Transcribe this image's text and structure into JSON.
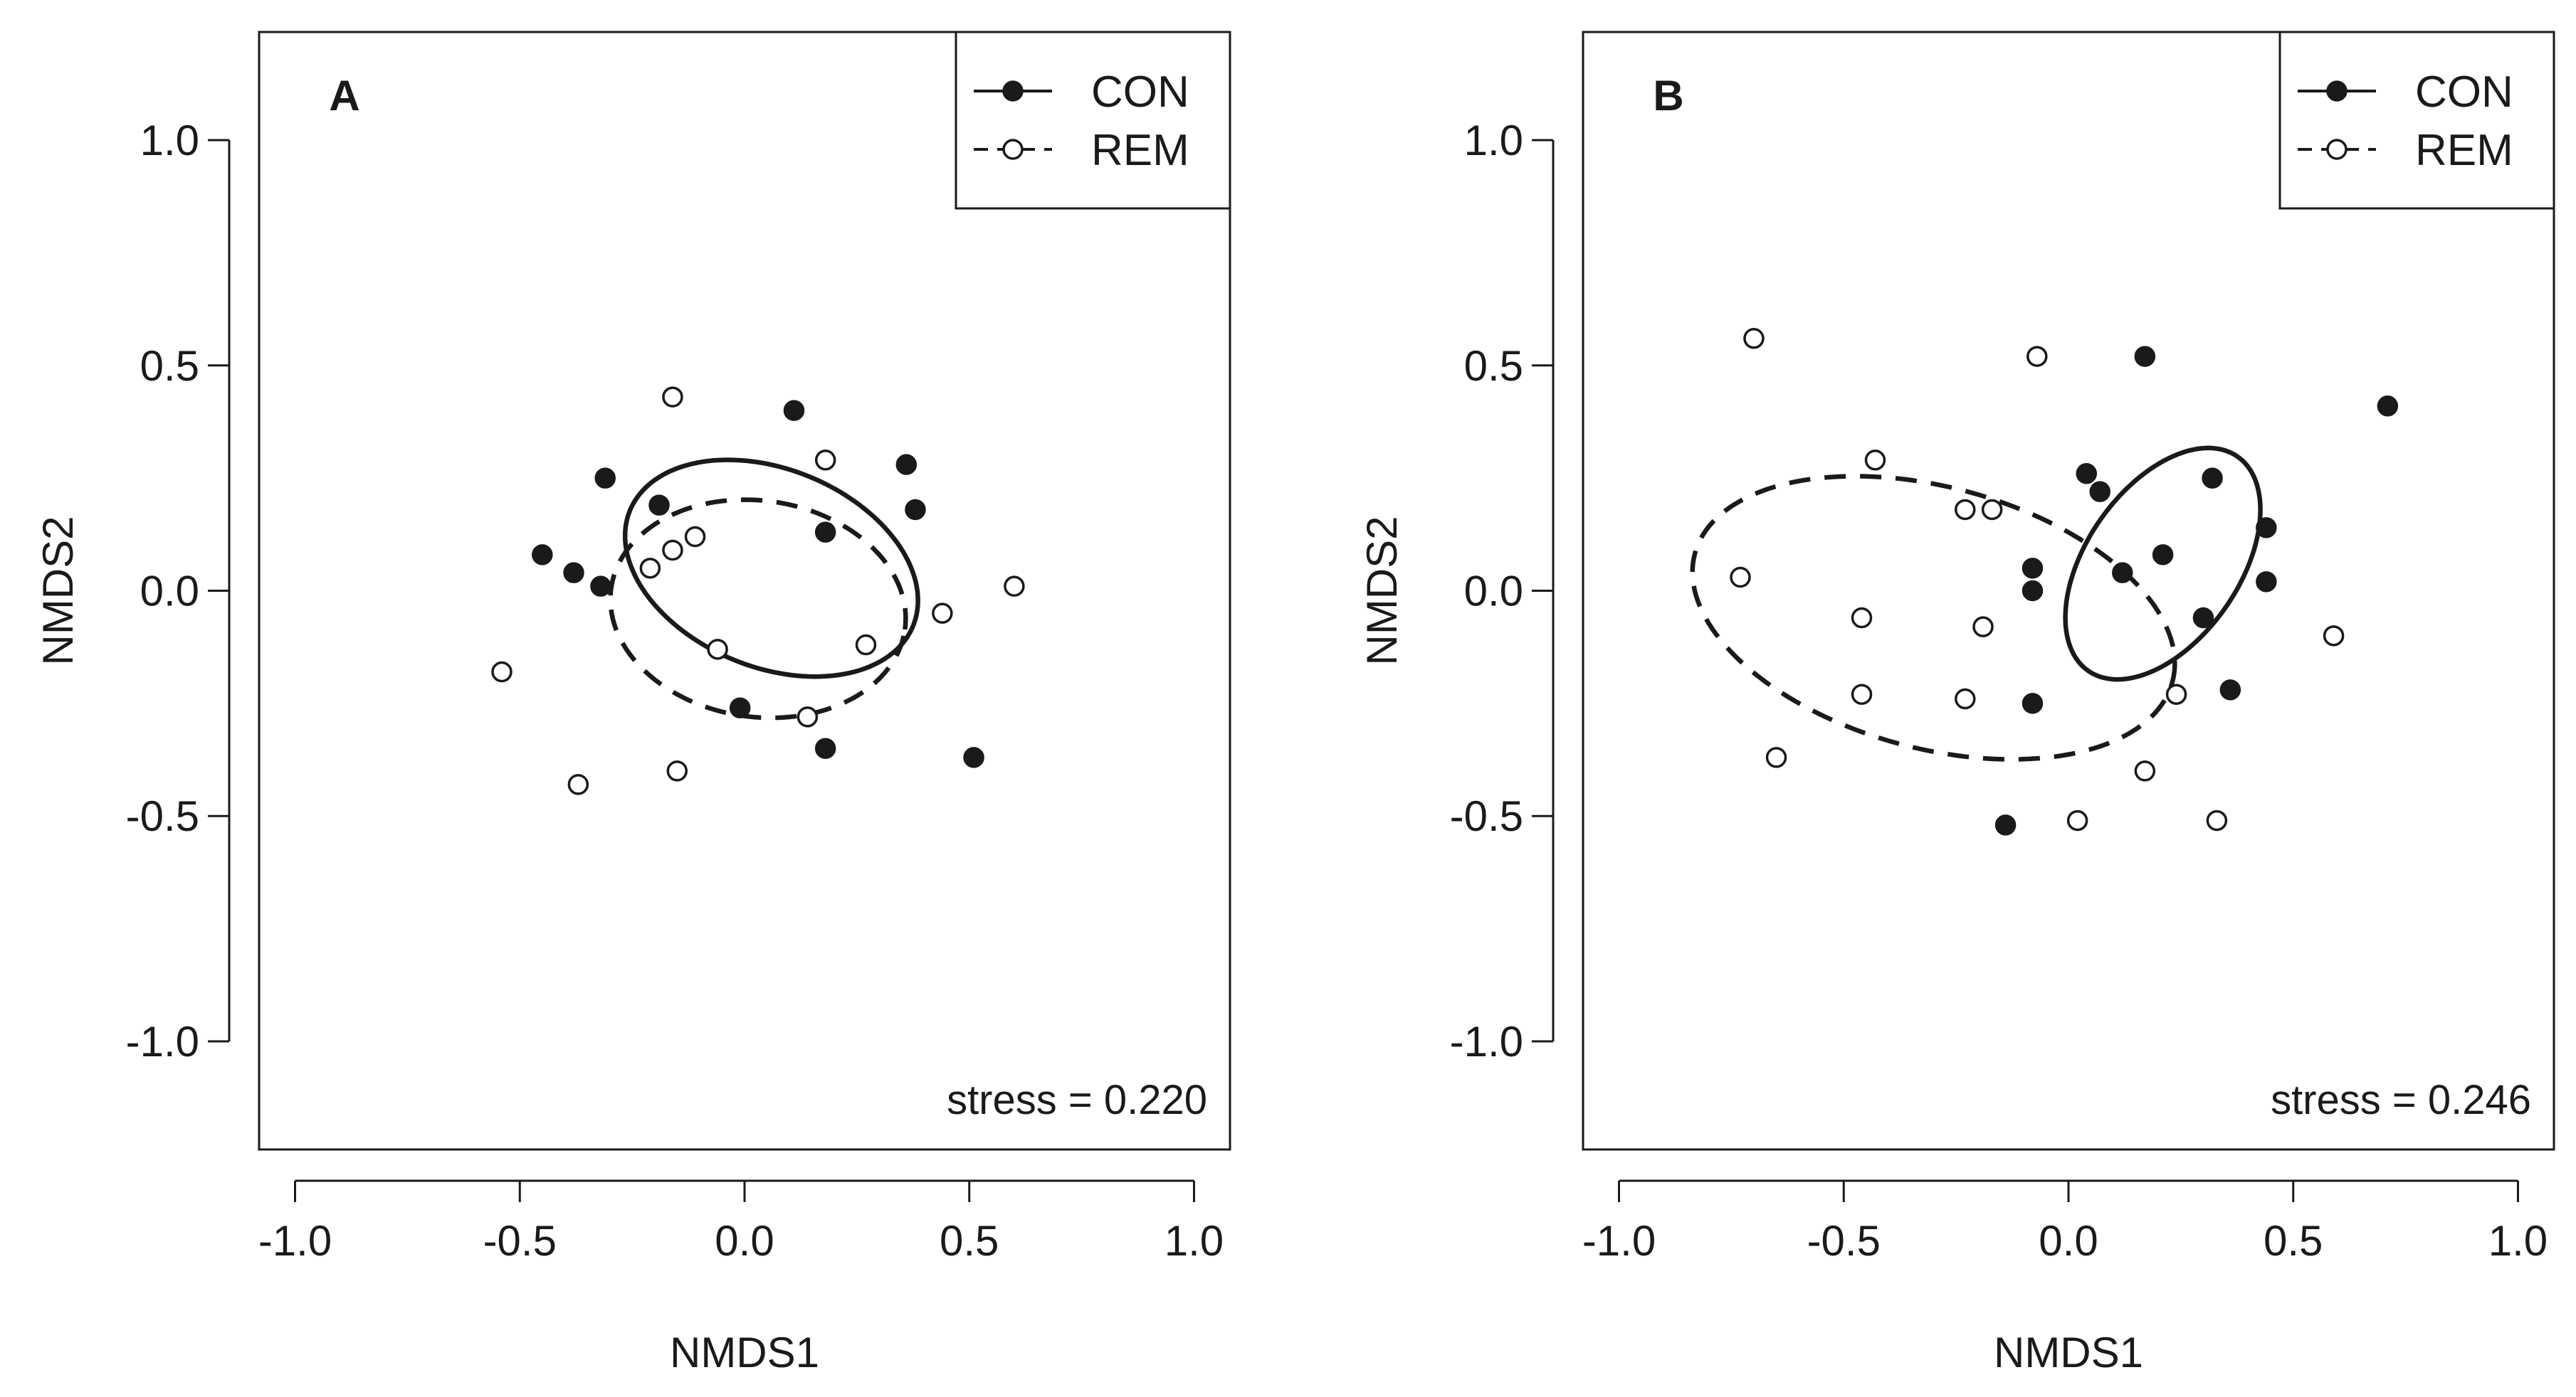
{
  "chart_data": [
    {
      "type": "scatter",
      "panel_label": "A",
      "xlabel": "NMDS1",
      "ylabel": "NMDS2",
      "xlim": [
        -1.08,
        1.08
      ],
      "ylim": [
        -1.24,
        1.24
      ],
      "xticks": [
        -1.0,
        -0.5,
        0.0,
        0.5,
        1.0
      ],
      "yticks": [
        -1.0,
        -0.5,
        0.0,
        0.5,
        1.0
      ],
      "tick_labels": [
        "-1.0",
        "-0.5",
        "0.0",
        "0.5",
        "1.0"
      ],
      "legend_position": "top-right",
      "stress_label": "stress = 0.220",
      "series": [
        {
          "name": "CON",
          "marker": "filled-circle",
          "line": "solid",
          "points": [
            [
              -0.45,
              0.08
            ],
            [
              -0.38,
              0.04
            ],
            [
              -0.32,
              0.01
            ],
            [
              -0.31,
              0.25
            ],
            [
              -0.19,
              0.19
            ],
            [
              0.11,
              0.4
            ],
            [
              0.18,
              0.13
            ],
            [
              0.36,
              0.28
            ],
            [
              0.38,
              0.18
            ],
            [
              -0.01,
              -0.26
            ],
            [
              0.18,
              -0.35
            ],
            [
              0.51,
              -0.37
            ]
          ],
          "ellipse": {
            "cx": 0.06,
            "cy": 0.05,
            "rx": 0.34,
            "ry": 0.22,
            "angle_deg": -22
          }
        },
        {
          "name": "REM",
          "marker": "open-circle",
          "line": "dashed",
          "points": [
            [
              -0.54,
              -0.18
            ],
            [
              -0.16,
              0.43
            ],
            [
              0.18,
              0.29
            ],
            [
              -0.21,
              0.05
            ],
            [
              -0.16,
              0.09
            ],
            [
              -0.11,
              0.12
            ],
            [
              -0.06,
              -0.13
            ],
            [
              0.27,
              -0.12
            ],
            [
              0.44,
              -0.05
            ],
            [
              0.6,
              0.01
            ],
            [
              0.14,
              -0.28
            ],
            [
              -0.15,
              -0.4
            ],
            [
              -0.37,
              -0.43
            ]
          ],
          "ellipse": {
            "cx": 0.03,
            "cy": -0.04,
            "rx": 0.33,
            "ry": 0.24,
            "angle_deg": -8
          }
        }
      ]
    },
    {
      "type": "scatter",
      "panel_label": "B",
      "xlabel": "NMDS1",
      "ylabel": "NMDS2",
      "xlim": [
        -1.08,
        1.08
      ],
      "ylim": [
        -1.24,
        1.24
      ],
      "xticks": [
        -1.0,
        -0.5,
        0.0,
        0.5,
        1.0
      ],
      "yticks": [
        -1.0,
        -0.5,
        0.0,
        0.5,
        1.0
      ],
      "tick_labels": [
        "-1.0",
        "-0.5",
        "0.0",
        "0.5",
        "1.0"
      ],
      "legend_position": "top-right",
      "stress_label": "stress = 0.246",
      "series": [
        {
          "name": "CON",
          "marker": "filled-circle",
          "line": "solid",
          "points": [
            [
              0.17,
              0.52
            ],
            [
              0.71,
              0.41
            ],
            [
              0.04,
              0.26
            ],
            [
              0.07,
              0.22
            ],
            [
              0.32,
              0.25
            ],
            [
              -0.08,
              0.05
            ],
            [
              -0.08,
              -0.0
            ],
            [
              0.12,
              0.04
            ],
            [
              0.21,
              0.08
            ],
            [
              0.44,
              0.14
            ],
            [
              0.44,
              0.02
            ],
            [
              0.3,
              -0.06
            ],
            [
              -0.08,
              -0.25
            ],
            [
              0.36,
              -0.22
            ],
            [
              -0.14,
              -0.52
            ]
          ],
          "ellipse": {
            "cx": 0.21,
            "cy": 0.06,
            "rx": 0.29,
            "ry": 0.17,
            "angle_deg": 55
          }
        },
        {
          "name": "REM",
          "marker": "open-circle",
          "line": "dashed",
          "points": [
            [
              -0.7,
              0.56
            ],
            [
              -0.07,
              0.52
            ],
            [
              -0.43,
              0.29
            ],
            [
              -0.23,
              0.18
            ],
            [
              -0.17,
              0.18
            ],
            [
              -0.73,
              0.03
            ],
            [
              -0.46,
              -0.06
            ],
            [
              -0.19,
              -0.08
            ],
            [
              -0.46,
              -0.23
            ],
            [
              -0.23,
              -0.24
            ],
            [
              0.24,
              -0.23
            ],
            [
              0.59,
              -0.1
            ],
            [
              -0.65,
              -0.37
            ],
            [
              0.17,
              -0.4
            ],
            [
              0.02,
              -0.51
            ],
            [
              0.33,
              -0.51
            ]
          ],
          "ellipse": {
            "cx": -0.3,
            "cy": -0.06,
            "rx": 0.55,
            "ry": 0.29,
            "angle_deg": -15
          }
        }
      ]
    }
  ],
  "colors": {
    "ink": "#1a1a1a",
    "background": "#ffffff"
  }
}
